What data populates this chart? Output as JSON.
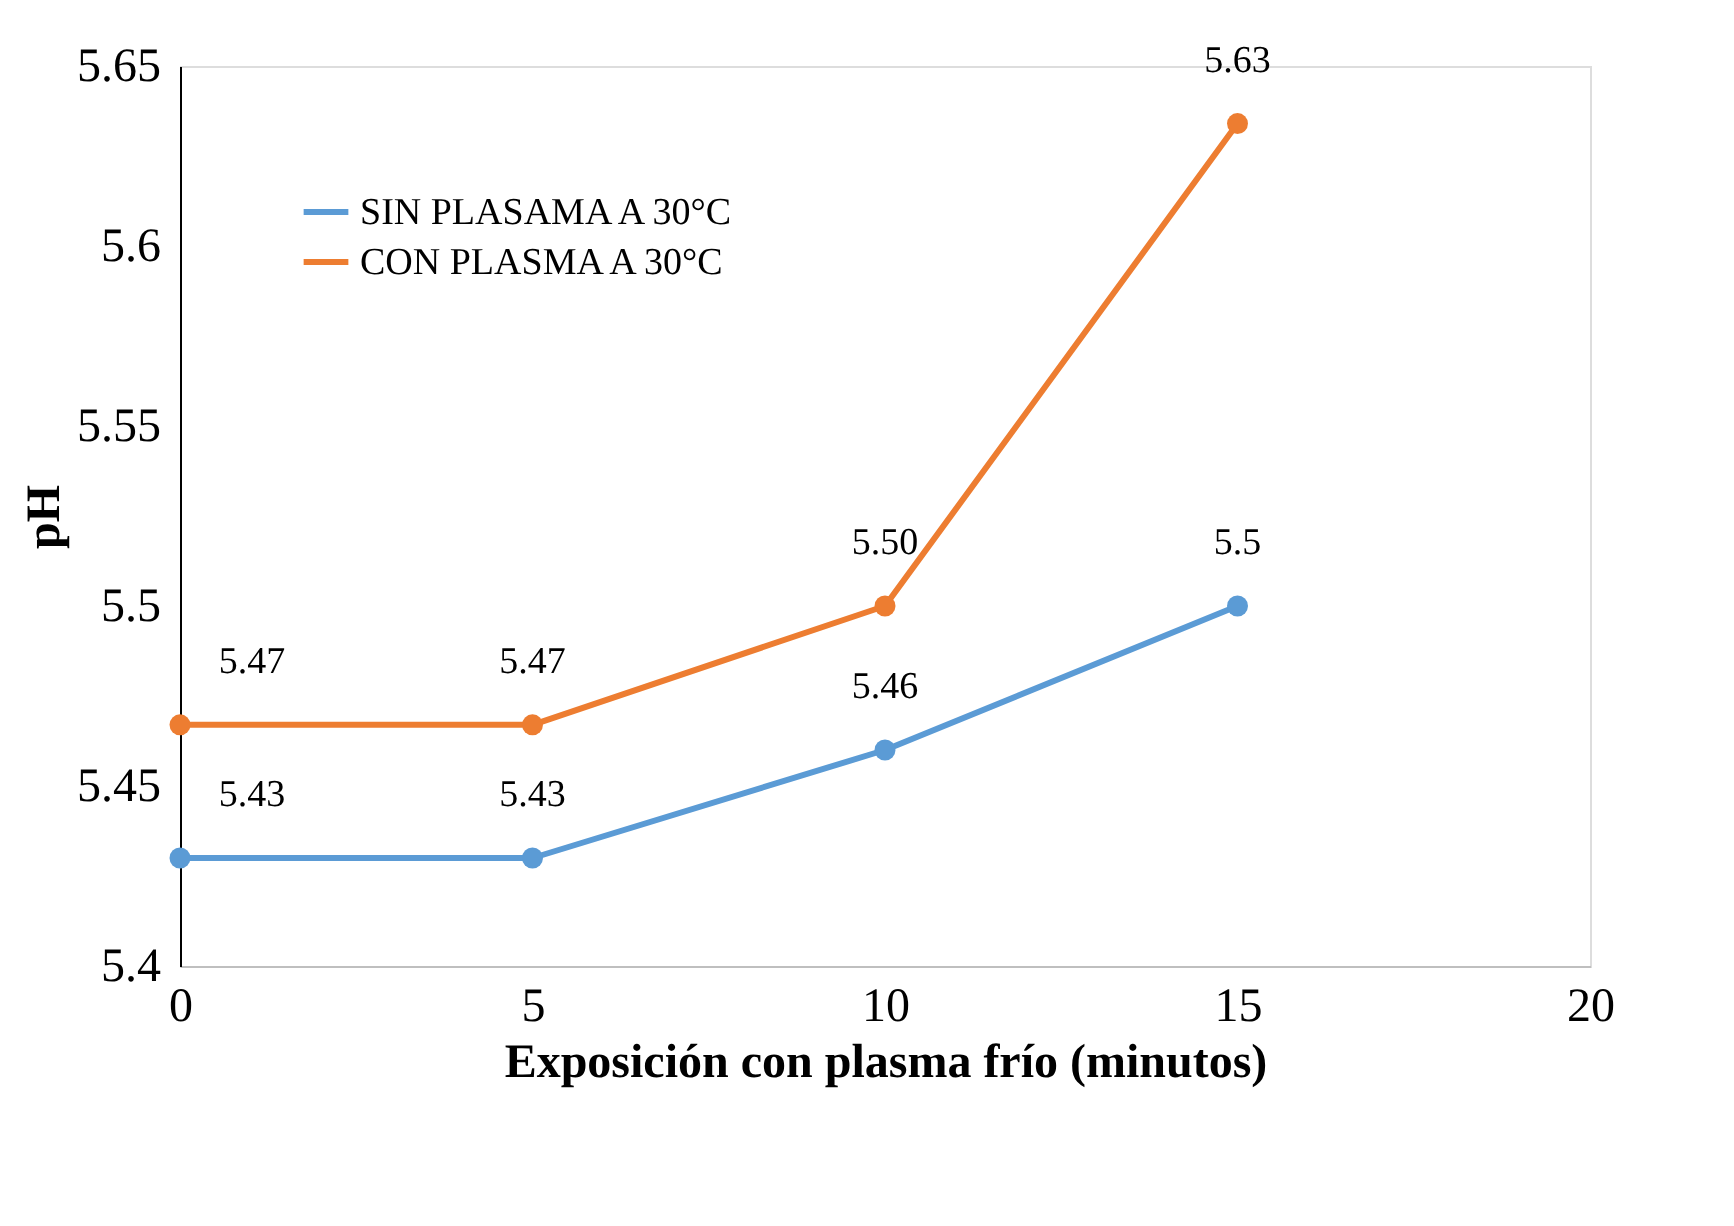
{
  "chart_data": {
    "type": "line",
    "xlabel": "Exposición con plasma frío (minutos)",
    "ylabel": "pH",
    "x": [
      0,
      5,
      10,
      15
    ],
    "series": [
      {
        "name": "SIN PLASAMA A 30°C",
        "color": "#5b9bd5",
        "values": [
          5.43,
          5.43,
          5.46,
          5.5
        ],
        "value_labels": [
          "5.43",
          "5.43",
          "5.46",
          "5.5"
        ]
      },
      {
        "name": "CON PLASMA A 30°C",
        "color": "#ed7d31",
        "values": [
          5.467,
          5.467,
          5.5,
          5.634
        ],
        "value_labels": [
          "5.47",
          "5.47",
          "5.50",
          "5.63"
        ]
      }
    ],
    "xlim": [
      0,
      20
    ],
    "xticks": [
      0,
      5,
      10,
      15,
      20
    ],
    "ylim": [
      5.4,
      5.65
    ],
    "yticks": [
      5.4,
      5.45,
      5.5,
      5.55,
      5.6,
      5.65
    ],
    "grid": false,
    "legend": "top left",
    "marker": "circle",
    "line_style": "solid"
  }
}
